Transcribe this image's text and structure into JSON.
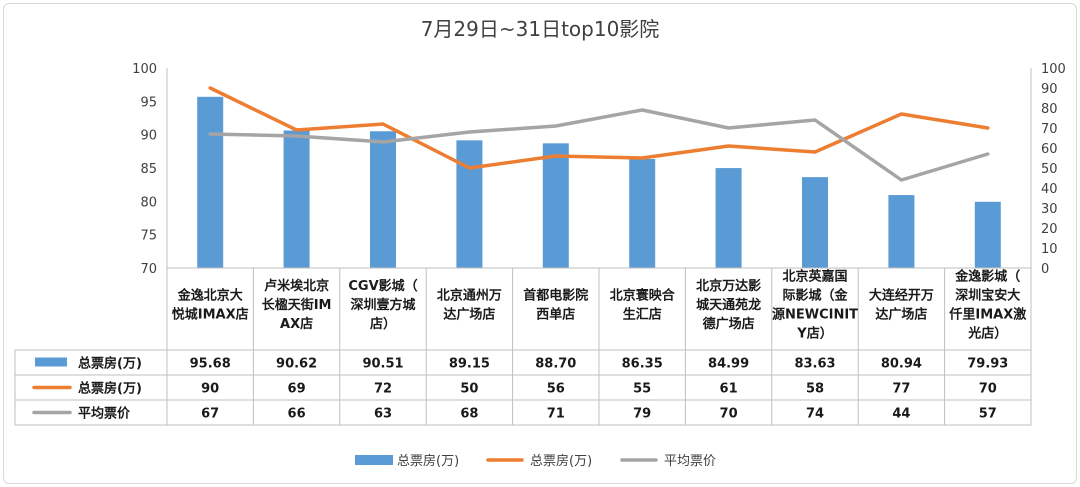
{
  "chart_data": {
    "type": "bar",
    "title": "7月29日~31日top10影院",
    "categories": [
      "金逸北京大悦城IMAX店",
      "卢米埃北京长楹天街IMAX店",
      "CGV影城（深圳壹方城店）",
      "北京通州万达广场店",
      "首都电影院西单店",
      "北京寰映合生汇店",
      "北京万达影城天通苑龙德广场店",
      "北京英嘉国际影城（金源NEWCINITY店）",
      "大连经开万达广场店",
      "金逸影城（深圳宝安大仟里IMAX激光店）"
    ],
    "category_lines": [
      [
        "金逸北京大",
        "悦城IMAX店"
      ],
      [
        "卢米埃北京",
        "长楹天街IM",
        "AX店"
      ],
      [
        "CGV影城（",
        "深圳壹方城",
        "店）"
      ],
      [
        "北京通州万",
        "达广场店"
      ],
      [
        "首都电影院",
        "西单店"
      ],
      [
        "北京寰映合",
        "生汇店"
      ],
      [
        "北京万达影",
        "城天通苑龙",
        "德广场店"
      ],
      [
        "北京英嘉国",
        "际影城（金",
        "源NEWCINIT",
        "Y店）"
      ],
      [
        "大连经开万",
        "达广场店"
      ],
      [
        "金逸影城（",
        "深圳宝安大",
        "仟里IMAX激",
        "光店）"
      ]
    ],
    "series": [
      {
        "name": "总票房(万)",
        "type": "bar",
        "axis": "left",
        "color": "#5b9bd5",
        "values": [
          95.68,
          90.62,
          90.51,
          89.15,
          88.7,
          86.35,
          84.99,
          83.63,
          80.94,
          79.93
        ],
        "labels": [
          "95.68",
          "90.62",
          "90.51",
          "89.15",
          "88.70",
          "86.35",
          "84.99",
          "83.63",
          "80.94",
          "79.93"
        ]
      },
      {
        "name": "总票房(万)",
        "type": "line",
        "axis": "right",
        "color": "#ed7d31",
        "values": [
          90,
          69,
          72,
          50,
          56,
          55,
          61,
          58,
          77,
          70
        ]
      },
      {
        "name": "平均票价",
        "type": "line",
        "axis": "right",
        "color": "#a5a5a5",
        "values": [
          67,
          66,
          63,
          68,
          71,
          79,
          70,
          74,
          44,
          57
        ]
      }
    ],
    "y_left": {
      "min": 70,
      "max": 100,
      "ticks": [
        70,
        75,
        80,
        85,
        90,
        95,
        100
      ]
    },
    "y_right": {
      "min": 0,
      "max": 100,
      "ticks": [
        0,
        10,
        20,
        30,
        40,
        50,
        60,
        70,
        80,
        90,
        100
      ]
    },
    "grid": false,
    "legend_position": "bottom",
    "data_table": true
  }
}
